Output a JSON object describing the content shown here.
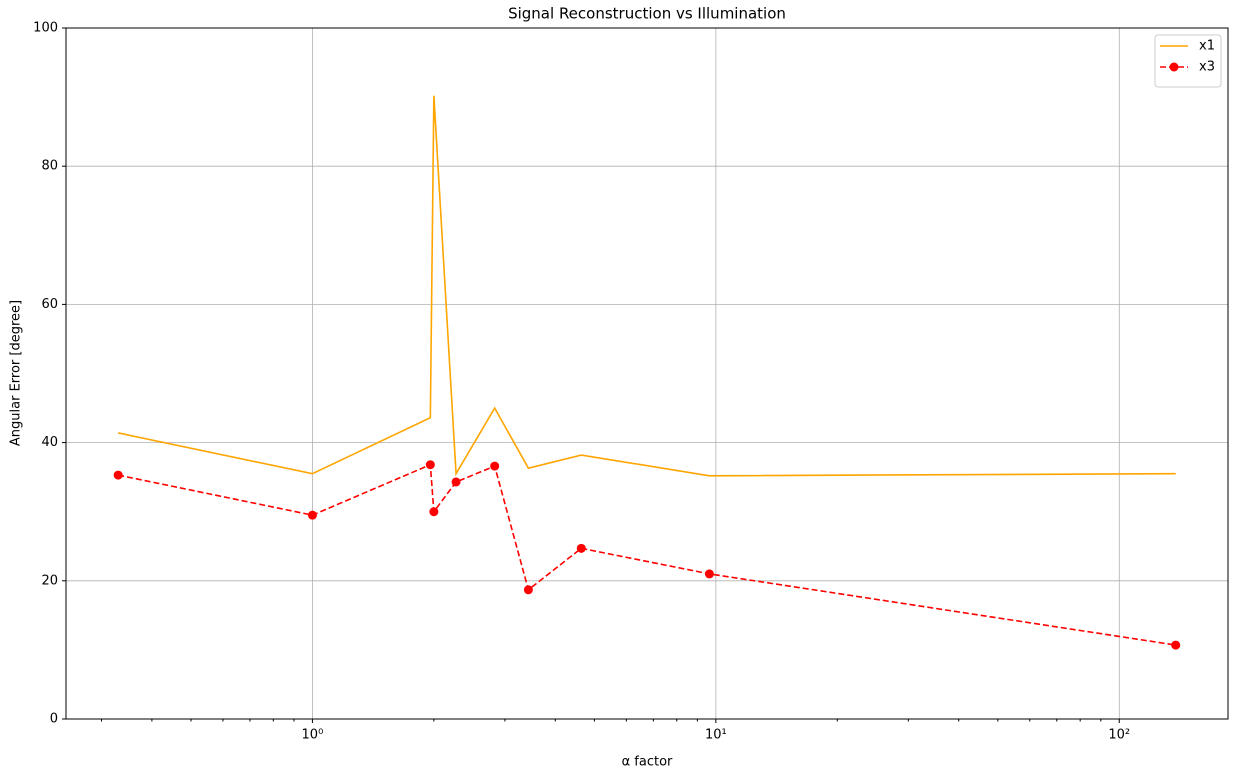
{
  "chart_data": {
    "type": "line",
    "title": "Signal Reconstruction vs Illumination",
    "xlabel": "α factor",
    "ylabel": "Angular Error [degree]",
    "xscale": "log",
    "grid": true,
    "legend": "upper right",
    "xlim": [
      0.245,
      186
    ],
    "ylim": [
      0,
      100
    ],
    "xticks": [
      {
        "value": 1,
        "label": "10⁰"
      },
      {
        "value": 10,
        "label": "10¹"
      },
      {
        "value": 100,
        "label": "10²"
      }
    ],
    "xminorticks": [
      0.3,
      0.4,
      0.5,
      0.6,
      0.7,
      0.8,
      0.9,
      2,
      3,
      4,
      5,
      6,
      7,
      8,
      9,
      20,
      30,
      40,
      50,
      60,
      70,
      80,
      90
    ],
    "yticks": [
      0,
      20,
      40,
      60,
      80,
      100
    ],
    "x": [
      0.33,
      1,
      1.96,
      2,
      2.27,
      2.83,
      3.43,
      4.64,
      9.64,
      138
    ],
    "series": [
      {
        "name": "x1",
        "color": "#ffa500",
        "dash": false,
        "marker": false,
        "values": [
          41.4,
          35.5,
          43.6,
          90.2,
          35.5,
          45.0,
          36.3,
          38.2,
          35.2,
          35.5
        ]
      },
      {
        "name": "x3",
        "color": "#ff0000",
        "dash": true,
        "marker": true,
        "values": [
          35.3,
          29.5,
          36.8,
          30.0,
          34.3,
          36.6,
          18.7,
          24.7,
          21.0,
          10.7
        ]
      }
    ]
  }
}
